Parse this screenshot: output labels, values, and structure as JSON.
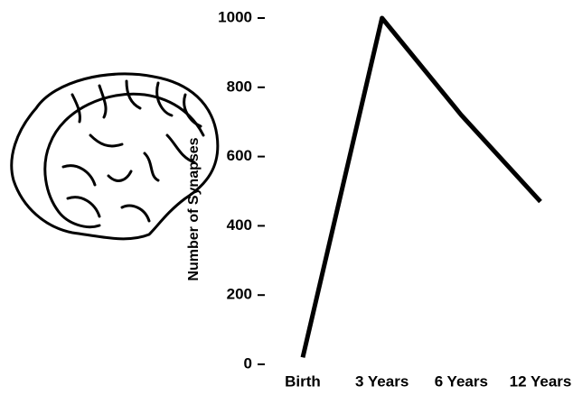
{
  "chart_data": {
    "type": "line",
    "y_label": "Number of Synapses",
    "categories": [
      "Birth",
      "3 Years",
      "6 Years",
      "12 Years"
    ],
    "values": [
      20,
      1000,
      720,
      470
    ],
    "color": "#000000",
    "ylim": [
      0,
      1000
    ],
    "yticks": [
      0,
      200,
      400,
      600,
      800,
      1000
    ]
  }
}
